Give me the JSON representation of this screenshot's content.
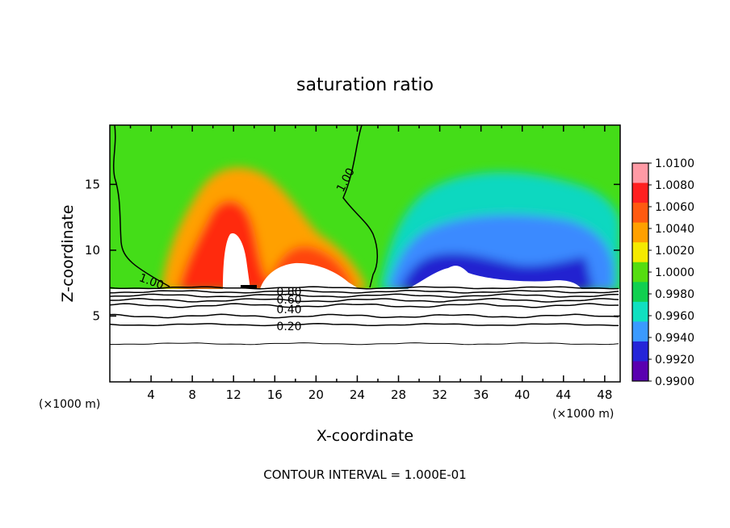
{
  "chart_data": {
    "type": "heatmap",
    "title": "saturation ratio",
    "xlabel": "X-coordinate",
    "ylabel": "Z-coordinate",
    "x_unit_left": "(×1000 m)",
    "x_unit_right": "(×1000 m)",
    "footer": "CONTOUR INTERVAL = 1.000E-01",
    "xlim": [
      0,
      49.5
    ],
    "ylim": [
      0,
      19.5
    ],
    "x_ticks": [
      "4",
      "8",
      "12",
      "16",
      "20",
      "24",
      "28",
      "32",
      "36",
      "40",
      "44",
      "48"
    ],
    "x_tick_values": [
      4,
      8,
      12,
      16,
      20,
      24,
      28,
      32,
      36,
      40,
      44,
      48
    ],
    "y_ticks": [
      "5",
      "10",
      "15"
    ],
    "y_tick_values": [
      5,
      10,
      15
    ],
    "colorbar": {
      "labels": [
        "1.0100",
        "1.0080",
        "1.0060",
        "1.0040",
        "1.0020",
        "1.0000",
        "0.9980",
        "0.9960",
        "0.9940",
        "0.9920",
        "0.9900"
      ],
      "values": [
        1.01,
        1.008,
        1.006,
        1.004,
        1.002,
        1.0,
        0.998,
        0.996,
        0.994,
        0.992,
        0.99
      ],
      "colors": [
        "#ff9aa5",
        "#ff2020",
        "#ff5a10",
        "#ffa000",
        "#f5ea00",
        "#55dd10",
        "#11d050",
        "#10e0c0",
        "#3a9aff",
        "#2525d8",
        "#5a00b0"
      ]
    },
    "contour_labels": [
      {
        "text": "1.00",
        "x": 4.0,
        "z": 7.9
      },
      {
        "text": "1.00",
        "x": 23.3,
        "z": 15.3
      },
      {
        "text": "0.80",
        "x": 17.5,
        "z": 6.9
      },
      {
        "text": "0.60",
        "x": 17.5,
        "z": 6.4
      },
      {
        "text": "0.40",
        "x": 17.5,
        "z": 5.6
      },
      {
        "text": "0.20",
        "x": 17.5,
        "z": 4.3
      }
    ],
    "contour_lines_lower_layer": [
      {
        "z": 7.15,
        "amp": 0.12
      },
      {
        "z": 6.85,
        "amp": 0.15
      },
      {
        "z": 6.55,
        "amp": 0.18
      },
      {
        "z": 6.2,
        "amp": 0.2
      },
      {
        "z": 5.8,
        "amp": 0.22
      },
      {
        "z": 5.0,
        "amp": 0.2
      },
      {
        "z": 4.35,
        "amp": 0.12
      },
      {
        "z": 2.9,
        "amp": 0.1
      }
    ],
    "grid": false
  }
}
